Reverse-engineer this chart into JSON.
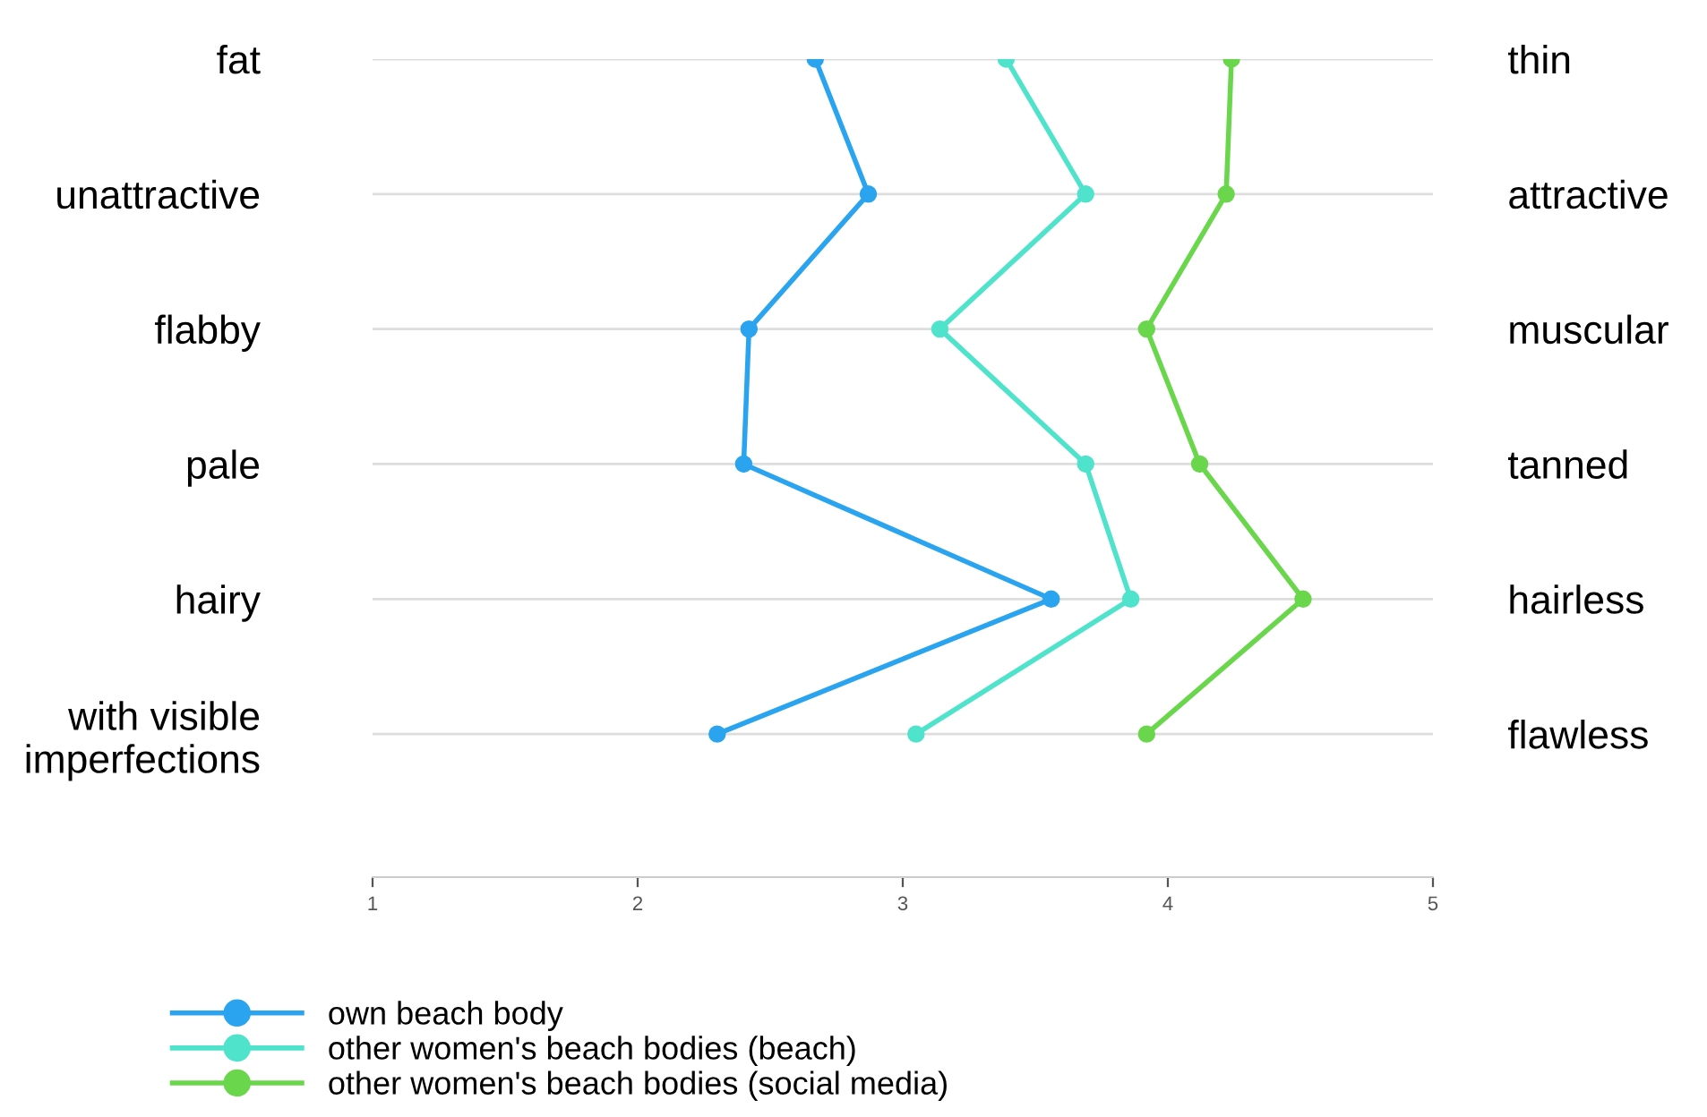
{
  "chart_data": {
    "type": "line",
    "orientation": "horizontal",
    "categories": [
      "fat",
      "unattractive",
      "flabby",
      "pale",
      "hairy",
      "with visible\nimperfections"
    ],
    "y2_categories": [
      "thin",
      "attractive",
      "muscular",
      "tanned",
      "hairless",
      "flawless"
    ],
    "series": [
      {
        "name": "own beach body",
        "color": "#2ba4ef",
        "values": [
          2.67,
          2.87,
          2.42,
          2.4,
          3.56,
          2.3
        ]
      },
      {
        "name": "other women's beach bodies (beach)",
        "color": "#4fe3cc",
        "values": [
          3.39,
          3.69,
          3.14,
          3.69,
          3.86,
          3.05
        ]
      },
      {
        "name": "other women's beach bodies (social media)",
        "color": "#6ad64c",
        "values": [
          4.24,
          4.22,
          3.92,
          4.12,
          4.51,
          3.92
        ]
      }
    ],
    "xlim": [
      1,
      5
    ],
    "xticks": [
      1,
      2,
      3,
      4,
      5
    ],
    "grid": "y",
    "legend": "bottom",
    "marker": "circle",
    "line_style": "solid"
  }
}
